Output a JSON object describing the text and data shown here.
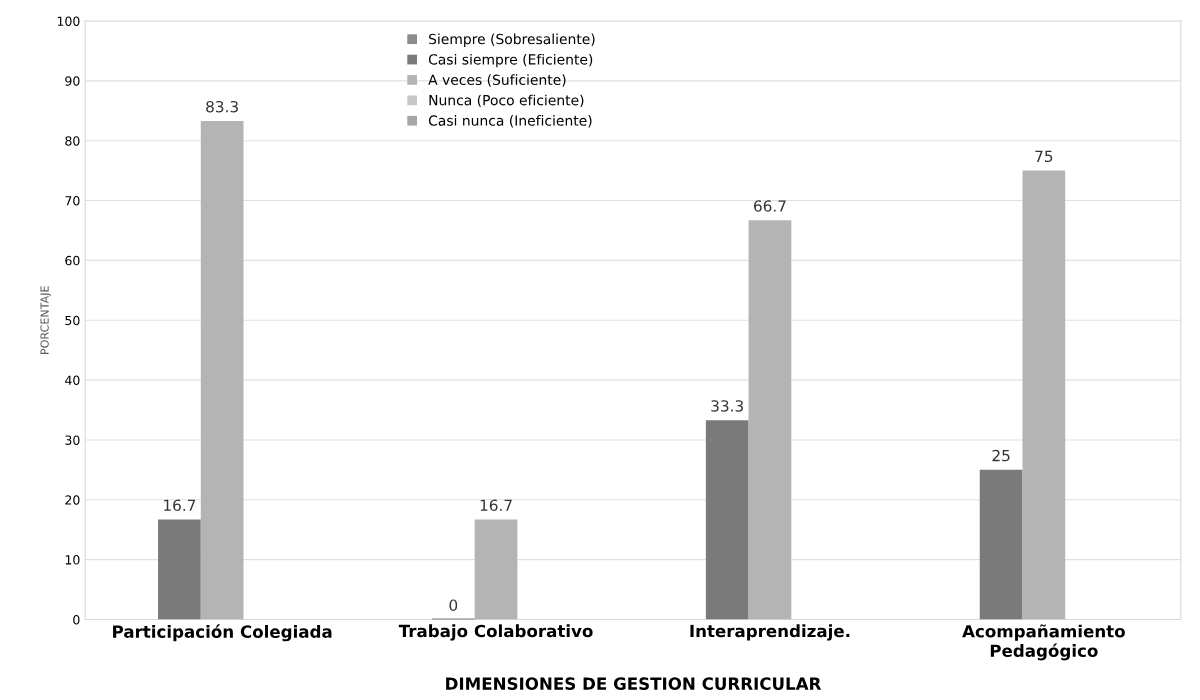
{
  "chart_data": {
    "type": "bar",
    "xlabel": "DIMENSIONES DE GESTION CURRICULAR",
    "ylabel": "PORCENTAJE",
    "categories": [
      "Participación Colegiada",
      "Trabajo Colaborativo",
      "Interaprendizaje.",
      "Acompañamiento\nPedagógico"
    ],
    "series": [
      {
        "name": "Siempre (Sobresaliente)",
        "color": "#8c8c8c",
        "values": [
          null,
          null,
          null,
          null
        ]
      },
      {
        "name": "Casi siempre (Eficiente)",
        "color": "#7a7a7a",
        "values": [
          16.7,
          0,
          33.3,
          25
        ]
      },
      {
        "name": "A veces (Suficiente)",
        "color": "#b4b4b4",
        "values": [
          83.3,
          16.7,
          66.7,
          75
        ]
      },
      {
        "name": "Nunca (Poco eficiente)",
        "color": "#c8c8c8",
        "values": [
          null,
          null,
          null,
          null
        ]
      },
      {
        "name": "Casi nunca (Ineficiente)",
        "color": "#a6a6a6",
        "values": [
          null,
          null,
          null,
          null
        ]
      }
    ],
    "ylim": [
      0,
      100
    ],
    "yticks": [
      0,
      10,
      20,
      30,
      40,
      50,
      60,
      70,
      80,
      90,
      100
    ],
    "grid": "y",
    "legend": "top",
    "data_labels": true
  }
}
